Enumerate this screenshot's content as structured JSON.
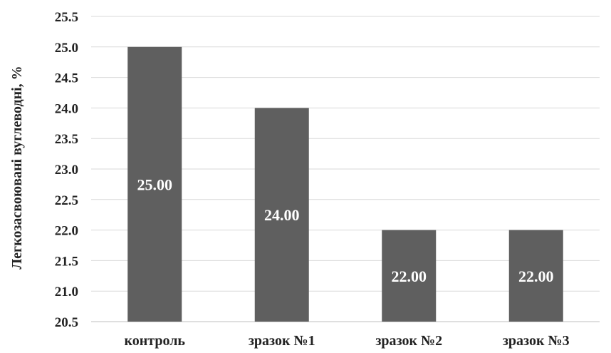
{
  "chart_data": {
    "type": "bar",
    "categories": [
      "контроль",
      "зразок №1",
      "зразок №2",
      "зразок №3"
    ],
    "values": [
      25.0,
      24.0,
      22.0,
      22.0
    ],
    "data_labels": [
      "25.00",
      "24.00",
      "22.00",
      "22.00"
    ],
    "ylabel": "Легкозасвоювані вуглеводні, %",
    "ylim": [
      20.5,
      25.5
    ],
    "yticks": [
      "20.5",
      "21.0",
      "21.5",
      "22.0",
      "22.5",
      "23.0",
      "23.5",
      "24.0",
      "24.5",
      "25.0",
      "25.5"
    ],
    "grid": true,
    "bar_color": "#5f5f5f"
  }
}
